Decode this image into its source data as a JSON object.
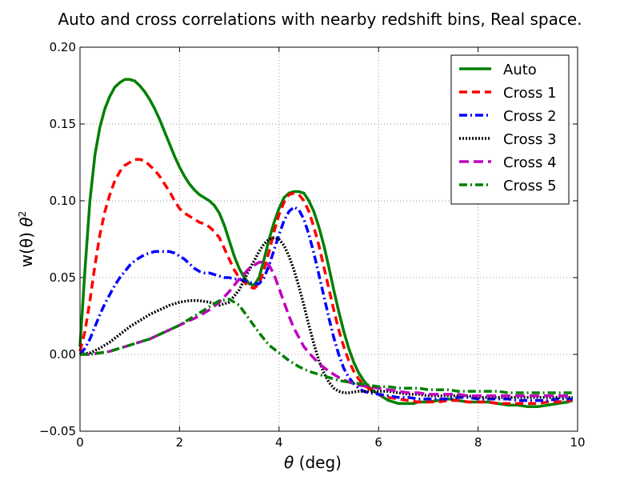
{
  "chart_data": {
    "type": "line",
    "title": "Auto and cross correlations with nearby redshift bins, Real space.",
    "xlabel_symbol": "θ",
    "xlabel_unit": " (deg)",
    "ylabel_main": "w(θ) ",
    "ylabel_theta": "θ",
    "ylabel_exp": "2",
    "xlim": [
      0,
      10
    ],
    "ylim": [
      -0.05,
      0.2
    ],
    "xticks": [
      0,
      2,
      4,
      6,
      8,
      10
    ],
    "xtick_labels": [
      "0",
      "2",
      "4",
      "6",
      "8",
      "10"
    ],
    "yticks": [
      -0.05,
      0,
      0.05,
      0.1,
      0.15,
      0.2
    ],
    "ytick_labels": [
      "−0.05",
      "0.00",
      "0.05",
      "0.10",
      "0.15",
      "0.20"
    ],
    "grid": true,
    "legend_position": "top-right",
    "series": [
      {
        "name": "Auto",
        "color": "#008000",
        "dash": "solid",
        "x": [
          0,
          0.1,
          0.2,
          0.3,
          0.4,
          0.5,
          0.6,
          0.7,
          0.8,
          0.9,
          1.0,
          1.1,
          1.2,
          1.3,
          1.4,
          1.5,
          1.6,
          1.7,
          1.8,
          1.9,
          2.0,
          2.1,
          2.2,
          2.3,
          2.4,
          2.5,
          2.6,
          2.7,
          2.8,
          2.9,
          3.0,
          3.1,
          3.2,
          3.3,
          3.4,
          3.5,
          3.6,
          3.7,
          3.8,
          3.9,
          4.0,
          4.1,
          4.2,
          4.3,
          4.4,
          4.5,
          4.6,
          4.7,
          4.8,
          4.9,
          5.0,
          5.1,
          5.2,
          5.3,
          5.4,
          5.5,
          5.6,
          5.7,
          5.8,
          5.9,
          6.0,
          6.1,
          6.2,
          6.3,
          6.4,
          6.5,
          6.6,
          6.7,
          6.8,
          6.9,
          7.0,
          7.2,
          7.4,
          7.6,
          7.8,
          8.0,
          8.2,
          8.4,
          8.6,
          8.8,
          9.0,
          9.2,
          9.4,
          9.6,
          9.8,
          9.9
        ],
        "y": [
          0.005,
          0.055,
          0.1,
          0.13,
          0.148,
          0.16,
          0.168,
          0.174,
          0.177,
          0.179,
          0.179,
          0.178,
          0.175,
          0.171,
          0.166,
          0.16,
          0.153,
          0.145,
          0.137,
          0.129,
          0.122,
          0.116,
          0.111,
          0.107,
          0.104,
          0.102,
          0.1,
          0.097,
          0.092,
          0.084,
          0.074,
          0.064,
          0.056,
          0.05,
          0.046,
          0.045,
          0.05,
          0.062,
          0.075,
          0.086,
          0.095,
          0.102,
          0.105,
          0.106,
          0.106,
          0.105,
          0.1,
          0.093,
          0.083,
          0.071,
          0.057,
          0.042,
          0.028,
          0.015,
          0.004,
          -0.005,
          -0.012,
          -0.017,
          -0.021,
          -0.024,
          -0.026,
          -0.028,
          -0.03,
          -0.031,
          -0.032,
          -0.032,
          -0.032,
          -0.032,
          -0.031,
          -0.031,
          -0.031,
          -0.03,
          -0.029,
          -0.03,
          -0.031,
          -0.031,
          -0.031,
          -0.032,
          -0.033,
          -0.033,
          -0.034,
          -0.034,
          -0.033,
          -0.032,
          -0.031,
          -0.03
        ]
      },
      {
        "name": "Cross 1",
        "color": "#ff0000",
        "dash": "10,6",
        "x": [
          0,
          0.1,
          0.2,
          0.3,
          0.4,
          0.5,
          0.6,
          0.7,
          0.8,
          0.9,
          1.0,
          1.1,
          1.2,
          1.3,
          1.4,
          1.5,
          1.6,
          1.7,
          1.8,
          1.9,
          2.0,
          2.1,
          2.2,
          2.3,
          2.4,
          2.5,
          2.6,
          2.7,
          2.8,
          2.9,
          3.0,
          3.1,
          3.2,
          3.3,
          3.4,
          3.5,
          3.6,
          3.7,
          3.8,
          3.9,
          4.0,
          4.1,
          4.2,
          4.3,
          4.4,
          4.5,
          4.6,
          4.7,
          4.8,
          4.9,
          5.0,
          5.1,
          5.2,
          5.3,
          5.4,
          5.5,
          5.6,
          5.7,
          5.8,
          5.9,
          6.0,
          6.2,
          6.4,
          6.6,
          6.8,
          7.0,
          7.2,
          7.4,
          7.6,
          7.8,
          8.0,
          8.2,
          8.4,
          8.6,
          8.8,
          9.0,
          9.2,
          9.4,
          9.6,
          9.8,
          9.9
        ],
        "y": [
          0.002,
          0.015,
          0.035,
          0.058,
          0.078,
          0.093,
          0.104,
          0.113,
          0.119,
          0.123,
          0.125,
          0.127,
          0.127,
          0.126,
          0.123,
          0.12,
          0.116,
          0.111,
          0.106,
          0.1,
          0.095,
          0.092,
          0.09,
          0.088,
          0.086,
          0.085,
          0.083,
          0.08,
          0.076,
          0.069,
          0.062,
          0.055,
          0.05,
          0.047,
          0.044,
          0.043,
          0.046,
          0.055,
          0.067,
          0.08,
          0.091,
          0.099,
          0.104,
          0.105,
          0.104,
          0.1,
          0.093,
          0.083,
          0.071,
          0.057,
          0.043,
          0.029,
          0.016,
          0.005,
          -0.004,
          -0.011,
          -0.016,
          -0.02,
          -0.022,
          -0.024,
          -0.026,
          -0.028,
          -0.029,
          -0.03,
          -0.031,
          -0.031,
          -0.031,
          -0.03,
          -0.03,
          -0.031,
          -0.031,
          -0.031,
          -0.032,
          -0.032,
          -0.032,
          -0.032,
          -0.032,
          -0.031,
          -0.031,
          -0.03,
          -0.03
        ]
      },
      {
        "name": "Cross 2",
        "color": "#0000ff",
        "dash": "10,4,2,4",
        "x": [
          0,
          0.1,
          0.2,
          0.3,
          0.4,
          0.5,
          0.6,
          0.7,
          0.8,
          0.9,
          1.0,
          1.1,
          1.2,
          1.3,
          1.4,
          1.5,
          1.6,
          1.7,
          1.8,
          1.9,
          2.0,
          2.1,
          2.2,
          2.3,
          2.4,
          2.5,
          2.6,
          2.7,
          2.8,
          2.9,
          3.0,
          3.1,
          3.2,
          3.3,
          3.4,
          3.5,
          3.6,
          3.7,
          3.8,
          3.9,
          4.0,
          4.1,
          4.2,
          4.3,
          4.4,
          4.5,
          4.6,
          4.7,
          4.8,
          4.9,
          5.0,
          5.1,
          5.2,
          5.3,
          5.4,
          5.5,
          5.6,
          5.7,
          5.8,
          6.0,
          6.2,
          6.4,
          6.6,
          6.8,
          7.0,
          7.2,
          7.4,
          7.6,
          7.8,
          8.0,
          8.2,
          8.4,
          8.6,
          8.8,
          9.0,
          9.2,
          9.4,
          9.6,
          9.8,
          9.9
        ],
        "y": [
          0,
          0.004,
          0.01,
          0.018,
          0.026,
          0.033,
          0.039,
          0.045,
          0.05,
          0.054,
          0.058,
          0.061,
          0.063,
          0.065,
          0.066,
          0.067,
          0.067,
          0.067,
          0.067,
          0.066,
          0.064,
          0.062,
          0.059,
          0.056,
          0.054,
          0.053,
          0.053,
          0.052,
          0.051,
          0.05,
          0.05,
          0.049,
          0.049,
          0.048,
          0.047,
          0.046,
          0.046,
          0.05,
          0.058,
          0.068,
          0.078,
          0.087,
          0.093,
          0.096,
          0.094,
          0.088,
          0.078,
          0.066,
          0.052,
          0.038,
          0.024,
          0.011,
          0,
          -0.009,
          -0.015,
          -0.019,
          -0.022,
          -0.024,
          -0.025,
          -0.026,
          -0.027,
          -0.028,
          -0.028,
          -0.029,
          -0.029,
          -0.029,
          -0.029,
          -0.028,
          -0.028,
          -0.029,
          -0.029,
          -0.029,
          -0.029,
          -0.03,
          -0.03,
          -0.03,
          -0.03,
          -0.029,
          -0.029,
          -0.029
        ]
      },
      {
        "name": "Cross 3",
        "color": "#000000",
        "dash": "2,2",
        "x": [
          0,
          0.2,
          0.4,
          0.6,
          0.8,
          1.0,
          1.2,
          1.4,
          1.6,
          1.8,
          2.0,
          2.2,
          2.4,
          2.6,
          2.8,
          3.0,
          3.2,
          3.4,
          3.6,
          3.7,
          3.8,
          3.9,
          4.0,
          4.1,
          4.2,
          4.3,
          4.4,
          4.5,
          4.6,
          4.7,
          4.8,
          4.9,
          5.0,
          5.1,
          5.2,
          5.3,
          5.4,
          5.6,
          5.8,
          6.0,
          6.2,
          6.4,
          6.6,
          6.8,
          7.0,
          7.2,
          7.4,
          7.6,
          7.8,
          8.0,
          8.2,
          8.4,
          8.6,
          8.8,
          9.0,
          9.2,
          9.4,
          9.6,
          9.8,
          9.9
        ],
        "y": [
          0,
          0.001,
          0.004,
          0.008,
          0.013,
          0.018,
          0.022,
          0.026,
          0.029,
          0.032,
          0.034,
          0.035,
          0.035,
          0.034,
          0.032,
          0.034,
          0.042,
          0.055,
          0.067,
          0.072,
          0.075,
          0.076,
          0.075,
          0.071,
          0.064,
          0.055,
          0.044,
          0.032,
          0.019,
          0.007,
          -0.004,
          -0.012,
          -0.018,
          -0.022,
          -0.024,
          -0.025,
          -0.025,
          -0.024,
          -0.024,
          -0.024,
          -0.024,
          -0.025,
          -0.026,
          -0.026,
          -0.027,
          -0.027,
          -0.027,
          -0.027,
          -0.027,
          -0.028,
          -0.028,
          -0.028,
          -0.028,
          -0.028,
          -0.028,
          -0.028,
          -0.028,
          -0.028,
          -0.028,
          -0.028
        ]
      },
      {
        "name": "Cross 4",
        "color": "#bf00bf",
        "dash": "12,6",
        "x": [
          0,
          0.2,
          0.4,
          0.6,
          0.8,
          1.0,
          1.2,
          1.4,
          1.6,
          1.8,
          2.0,
          2.2,
          2.4,
          2.6,
          2.8,
          3.0,
          3.2,
          3.4,
          3.6,
          3.7,
          3.8,
          3.9,
          4.0,
          4.1,
          4.2,
          4.3,
          4.4,
          4.5,
          4.6,
          4.8,
          5.0,
          5.2,
          5.4,
          5.6,
          5.8,
          6.0,
          6.2,
          6.4,
          6.6,
          6.8,
          7.0,
          7.2,
          7.4,
          7.6,
          7.8,
          8.0,
          8.2,
          8.4,
          8.6,
          8.8,
          9.0,
          9.2,
          9.4,
          9.6,
          9.8,
          9.9
        ],
        "y": [
          0,
          0,
          0.001,
          0.002,
          0.004,
          0.006,
          0.008,
          0.01,
          0.013,
          0.016,
          0.019,
          0.022,
          0.025,
          0.029,
          0.034,
          0.041,
          0.049,
          0.056,
          0.06,
          0.06,
          0.058,
          0.052,
          0.043,
          0.034,
          0.025,
          0.017,
          0.011,
          0.005,
          0.001,
          -0.006,
          -0.011,
          -0.015,
          -0.018,
          -0.02,
          -0.021,
          -0.022,
          -0.023,
          -0.024,
          -0.025,
          -0.025,
          -0.026,
          -0.026,
          -0.026,
          -0.026,
          -0.027,
          -0.027,
          -0.027,
          -0.027,
          -0.027,
          -0.027,
          -0.027,
          -0.027,
          -0.027,
          -0.027,
          -0.027,
          -0.027
        ]
      },
      {
        "name": "Cross 5",
        "color": "#008000",
        "dash": "10,4,2,4",
        "x": [
          0,
          0.2,
          0.4,
          0.6,
          0.8,
          1.0,
          1.2,
          1.4,
          1.6,
          1.8,
          2.0,
          2.2,
          2.4,
          2.6,
          2.8,
          3.0,
          3.2,
          3.4,
          3.6,
          3.8,
          4.0,
          4.2,
          4.4,
          4.6,
          4.8,
          5.0,
          5.2,
          5.4,
          5.6,
          5.8,
          6.0,
          6.2,
          6.4,
          6.6,
          6.8,
          7.0,
          7.2,
          7.4,
          7.6,
          7.8,
          8.0,
          8.2,
          8.4,
          8.6,
          8.8,
          9.0,
          9.2,
          9.4,
          9.6,
          9.8,
          9.9
        ],
        "y": [
          0,
          0,
          0.001,
          0.002,
          0.004,
          0.006,
          0.008,
          0.01,
          0.013,
          0.016,
          0.019,
          0.023,
          0.027,
          0.031,
          0.035,
          0.036,
          0.032,
          0.023,
          0.014,
          0.006,
          0.001,
          -0.004,
          -0.008,
          -0.011,
          -0.013,
          -0.015,
          -0.017,
          -0.018,
          -0.019,
          -0.02,
          -0.021,
          -0.021,
          -0.022,
          -0.022,
          -0.022,
          -0.023,
          -0.023,
          -0.023,
          -0.024,
          -0.024,
          -0.024,
          -0.024,
          -0.024,
          -0.025,
          -0.025,
          -0.025,
          -0.025,
          -0.025,
          -0.025,
          -0.025,
          -0.025
        ]
      }
    ]
  }
}
